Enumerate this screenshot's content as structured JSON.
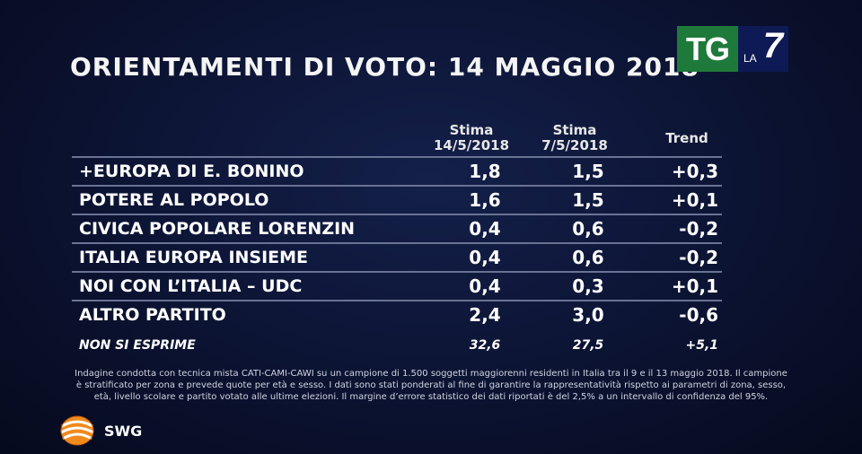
{
  "title": "ORIENTAMENTI DI VOTO: 14 MAGGIO 2018",
  "logo": {
    "tg": "TG",
    "la": "LA",
    "seven": "7"
  },
  "chart_data": {
    "type": "table",
    "columns": [
      {
        "line1": "Stima",
        "line2": "14/5/2018"
      },
      {
        "line1": "Stima",
        "line2": "7/5/2018"
      },
      {
        "line1": "Trend",
        "line2": ""
      }
    ],
    "rows": [
      {
        "party": "+EUROPA DI E. BONINO",
        "v1": "1,8",
        "v2": "1,5",
        "trend": "+0,3"
      },
      {
        "party": "POTERE AL POPOLO",
        "v1": "1,6",
        "v2": "1,5",
        "trend": "+0,1"
      },
      {
        "party": "CIVICA POPOLARE LORENZIN",
        "v1": "0,4",
        "v2": "0,6",
        "trend": "-0,2"
      },
      {
        "party": "ITALIA EUROPA INSIEME",
        "v1": "0,4",
        "v2": "0,6",
        "trend": "-0,2"
      },
      {
        "party": "NOI CON L’ITALIA – UDC",
        "v1": "0,4",
        "v2": "0,3",
        "trend": "+0,1"
      },
      {
        "party": "ALTRO PARTITO",
        "v1": "2,4",
        "v2": "3,0",
        "trend": "-0,6"
      },
      {
        "party": "NON SI ESPRIME",
        "v1": "32,6",
        "v2": "27,5",
        "trend": "+5,1"
      }
    ]
  },
  "note": "Indagine condotta con tecnica mista CATI-CAMI-CAWI su un campione di 1.500 soggetti maggiorenni residenti in Italia tra il 9 e il 13 maggio 2018. Il campione è stratificato per zona e prevede quote per età e sesso. I dati sono stati ponderati al fine di garantire la rappresentatività rispetto ai parametri di zona, sesso, età, livello scolare e partito votato alle ultime elezioni. Il margine d’errore statistico dei dati riportati è del 2,5% a un intervallo di confidenza del 95%.",
  "brand": {
    "name": "SWG",
    "icon": "globe-icon",
    "accent": "#f08a1c"
  }
}
